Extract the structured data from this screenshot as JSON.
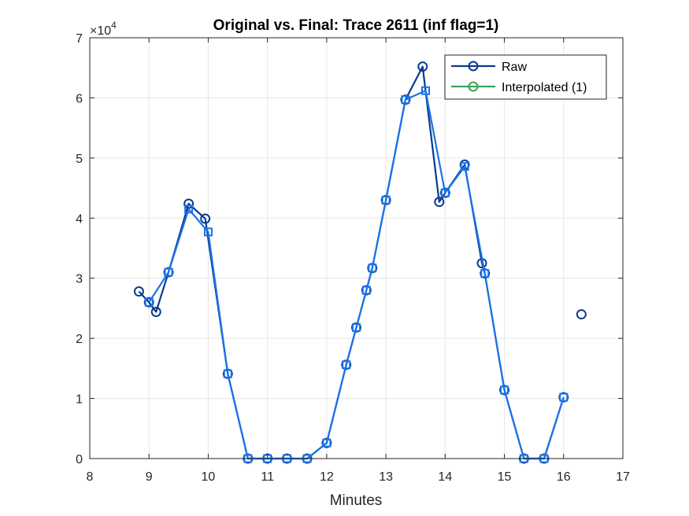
{
  "chart_data": {
    "type": "line",
    "title": "Original vs. Final: Trace 2611 (inf flag=1)",
    "xlabel": "Minutes",
    "ylabel": "",
    "xlim": [
      8,
      17
    ],
    "ylim": [
      0,
      70000
    ],
    "x_ticks": [
      8,
      9,
      10,
      11,
      12,
      13,
      14,
      15,
      16,
      17
    ],
    "y_ticks": [
      0,
      1,
      2,
      3,
      4,
      5,
      6,
      7
    ],
    "y_exponent_base": "10",
    "y_exponent_power": "4",
    "y_scale_factor": 10000,
    "grid": true,
    "legend_position": "top-right",
    "colors": {
      "raw": "#0a3a8f",
      "interpolated": "#3aa55a",
      "final": "#1a73e8",
      "grid": "#e6e6e6",
      "axis": "#262626"
    },
    "series": [
      {
        "name": "Raw",
        "marker": "circle",
        "points": [
          [
            8.83,
            27800
          ],
          [
            9.0,
            26000
          ],
          [
            9.12,
            24400
          ],
          [
            9.33,
            31000
          ],
          [
            9.67,
            42400
          ],
          [
            9.95,
            39900
          ],
          [
            10.33,
            14100
          ],
          [
            10.67,
            0
          ],
          [
            11.0,
            0
          ],
          [
            11.33,
            0
          ],
          [
            11.67,
            0
          ],
          [
            12.0,
            2600
          ],
          [
            12.33,
            15600
          ],
          [
            12.5,
            21800
          ],
          [
            12.67,
            28000
          ],
          [
            12.77,
            31700
          ],
          [
            13.0,
            43000
          ],
          [
            13.33,
            59700
          ],
          [
            13.62,
            65200
          ],
          [
            13.9,
            42700
          ],
          [
            14.0,
            44200
          ],
          [
            14.33,
            48900
          ],
          [
            14.62,
            32500
          ],
          [
            14.67,
            30800
          ],
          [
            15.0,
            11400
          ],
          [
            15.33,
            0
          ],
          [
            15.67,
            0
          ],
          [
            16.0,
            10200
          ]
        ],
        "isolated_points": [
          [
            16.3,
            24000
          ]
        ]
      },
      {
        "name": "Interpolated (1)",
        "marker": "circle",
        "points": []
      },
      {
        "name": "",
        "marker": "square",
        "points": [
          [
            9.0,
            26000
          ],
          [
            9.33,
            31000
          ],
          [
            9.67,
            41500
          ],
          [
            10.0,
            37700
          ],
          [
            10.33,
            14100
          ],
          [
            10.67,
            0
          ],
          [
            11.0,
            0
          ],
          [
            11.33,
            0
          ],
          [
            11.67,
            0
          ],
          [
            12.0,
            2600
          ],
          [
            12.33,
            15600
          ],
          [
            12.5,
            21800
          ],
          [
            12.67,
            28000
          ],
          [
            12.77,
            31700
          ],
          [
            13.0,
            43000
          ],
          [
            13.33,
            59700
          ],
          [
            13.67,
            61200
          ],
          [
            14.0,
            44200
          ],
          [
            14.33,
            48600
          ],
          [
            14.67,
            30800
          ],
          [
            15.0,
            11400
          ],
          [
            15.33,
            0
          ],
          [
            15.67,
            0
          ],
          [
            16.0,
            10200
          ]
        ]
      }
    ]
  }
}
